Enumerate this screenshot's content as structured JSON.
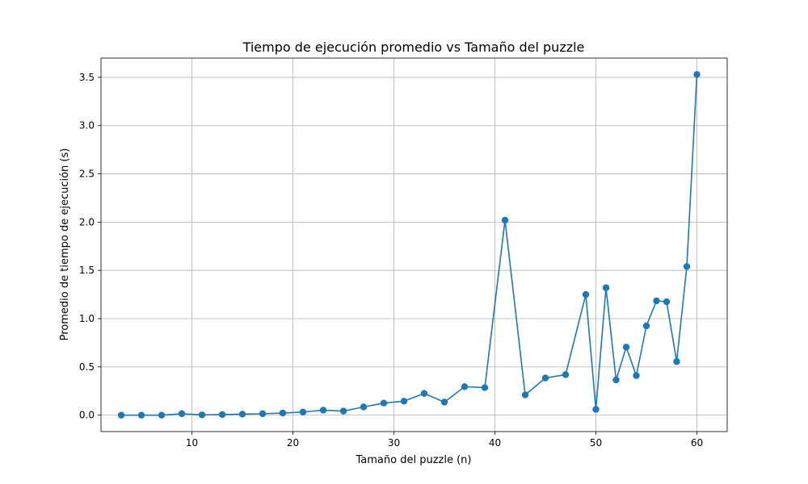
{
  "chart_data": {
    "type": "line",
    "title": "Tiempo de ejecución promedio vs Tamaño del puzzle",
    "xlabel": "Tamaño del puzzle (n)",
    "ylabel": "Promedio de tiempo de ejecución (s)",
    "xlim": [
      1,
      63
    ],
    "ylim": [
      -0.17,
      3.7
    ],
    "x_ticks": [
      10,
      20,
      30,
      40,
      50,
      60
    ],
    "x_tick_labels": [
      "10",
      "20",
      "30",
      "40",
      "50",
      "60"
    ],
    "y_ticks": [
      0.0,
      0.5,
      1.0,
      1.5,
      2.0,
      2.5,
      3.0,
      3.5
    ],
    "y_tick_labels": [
      "0.0",
      "0.5",
      "1.0",
      "1.5",
      "2.0",
      "2.5",
      "3.0",
      "3.5"
    ],
    "grid": true,
    "color": "#1f77b4",
    "series": [
      {
        "x": [
          3,
          5,
          7,
          9,
          11,
          13,
          15,
          17,
          19,
          21,
          23,
          25,
          27,
          29,
          31,
          33,
          35,
          37,
          39,
          41,
          43,
          45,
          47,
          49,
          50,
          51,
          52,
          53,
          54,
          55,
          56,
          57,
          58,
          59,
          60
        ],
        "values": [
          0.0,
          0.0,
          0.0,
          0.015,
          0.003,
          0.006,
          0.01,
          0.015,
          0.022,
          0.032,
          0.052,
          0.042,
          0.085,
          0.125,
          0.145,
          0.225,
          0.135,
          0.295,
          0.285,
          2.02,
          0.21,
          0.385,
          0.42,
          1.25,
          0.06,
          1.32,
          0.365,
          0.705,
          0.41,
          0.925,
          1.185,
          1.175,
          0.555,
          1.54,
          3.53
        ]
      }
    ]
  }
}
